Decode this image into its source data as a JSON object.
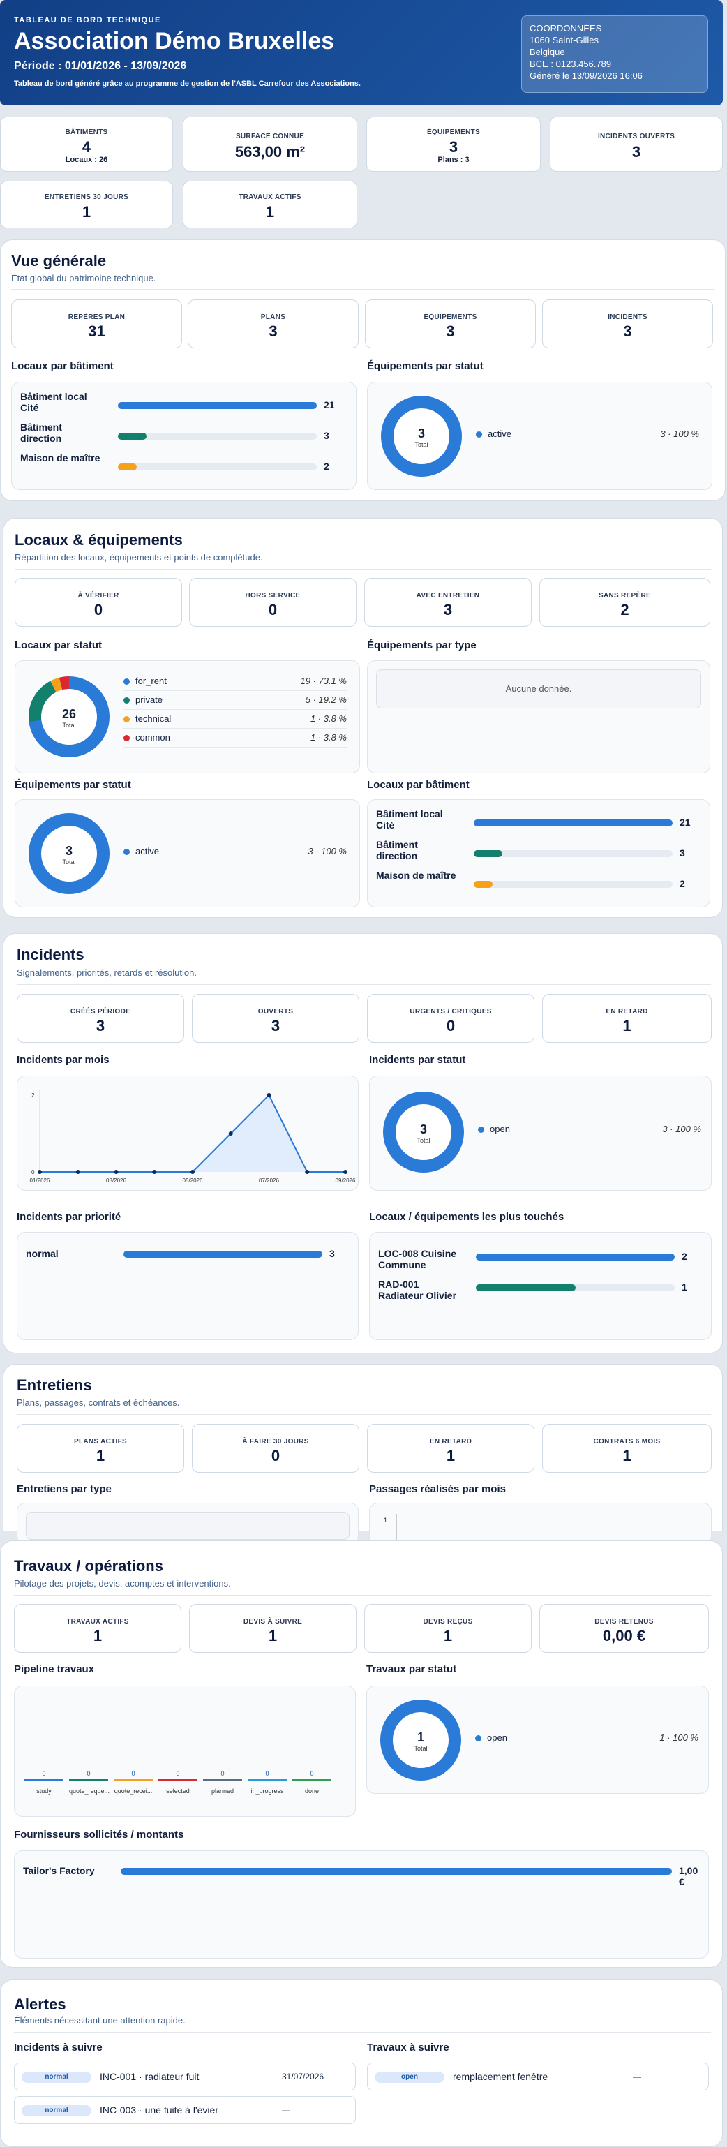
{
  "header": {
    "overline": "TABLEAU DE BORD TECHNIQUE",
    "title": "Association Démo Bruxelles",
    "period": "Période : 01/01/2026 - 13/09/2026",
    "subtitle": "Tableau de bord généré grâce au programme de gestion de l'ASBL Carrefour des Associations.",
    "contact": {
      "title": "COORDONNÉES",
      "line1": "1060 Saint-Gilles",
      "line2": "Belgique",
      "line3": "BCE : 0123.456.789",
      "line4": "Généré le 13/09/2026 16:06"
    }
  },
  "kpis": [
    {
      "label": "BÂTIMENTS",
      "value": "4",
      "sub": "Locaux : 26"
    },
    {
      "label": "SURFACE CONNUE",
      "value": "563,00 m²"
    },
    {
      "label": "ÉQUIPEMENTS",
      "value": "3",
      "sub": "Plans : 3"
    },
    {
      "label": "INCIDENTS OUVERTS",
      "value": "3"
    },
    {
      "label": "ENTRETIENS 30 JOURS",
      "value": "1"
    },
    {
      "label": "TRAVAUX ACTIFS",
      "value": "1"
    }
  ],
  "overview": {
    "title": "Vue générale",
    "subtitle": "État global du patrimoine technique.",
    "kpis": [
      {
        "label": "REPÈRES PLAN",
        "value": "31"
      },
      {
        "label": "PLANS",
        "value": "3"
      },
      {
        "label": "ÉQUIPEMENTS",
        "value": "3"
      },
      {
        "label": "INCIDENTS",
        "value": "3"
      }
    ],
    "locaux_title": "Locaux par bâtiment",
    "buildings": [
      {
        "name": "Bâtiment local Cité",
        "value": "21",
        "fraction": 1,
        "color": "#2a7ad8"
      },
      {
        "name": "Bâtiment direction",
        "value": "3",
        "fraction": 0.143,
        "color": "#12806d"
      },
      {
        "name": "Maison de maître",
        "value": "2",
        "fraction": 0.095,
        "color": "#f4a11b"
      }
    ],
    "equip_title": "Équipements par statut",
    "equip_donut": {
      "value": "3",
      "label": "Total"
    },
    "equip_legend": [
      {
        "name": "active",
        "value": "3 · 100 %",
        "color": "#2a7ad8"
      }
    ]
  },
  "locaux": {
    "title": "Locaux & équipements",
    "subtitle": "Répartition des locaux, équipements et points de complétude.",
    "kpis": [
      {
        "label": "À VÉRIFIER",
        "value": "0"
      },
      {
        "label": "HORS SERVICE",
        "value": "0"
      },
      {
        "label": "AVEC ENTRETIEN",
        "value": "3"
      },
      {
        "label": "SANS REPÈRE",
        "value": "2"
      }
    ],
    "status_title": "Locaux par statut",
    "status_donut": {
      "value": "26",
      "label": "Total"
    },
    "status_legend": [
      {
        "name": "for_rent",
        "value": "19 · 73.1 %",
        "color": "#2a7ad8"
      },
      {
        "name": "private",
        "value": "5 · 19.2 %",
        "color": "#12806d"
      },
      {
        "name": "technical",
        "value": "1 · 3.8 %",
        "color": "#f4a11b"
      },
      {
        "name": "common",
        "value": "1 · 3.8 %",
        "color": "#d9282f"
      }
    ],
    "type_title": "Équipements par type",
    "type_empty": "Aucune donnée.",
    "equip_title": "Équipements par statut",
    "equip_donut": {
      "value": "3",
      "label": "Total"
    },
    "equip_legend": [
      {
        "name": "active",
        "value": "3 · 100 %",
        "color": "#2a7ad8"
      }
    ],
    "build_title": "Locaux par bâtiment",
    "buildings": [
      {
        "name": "Bâtiment local Cité",
        "value": "21",
        "fraction": 1,
        "color": "#2a7ad8"
      },
      {
        "name": "Bâtiment direction",
        "value": "3",
        "fraction": 0.143,
        "color": "#12806d"
      },
      {
        "name": "Maison de maître",
        "value": "2",
        "fraction": 0.095,
        "color": "#f4a11b"
      }
    ]
  },
  "incidents": {
    "title": "Incidents",
    "subtitle": "Signalements, priorités, retards et résolution.",
    "kpis": [
      {
        "label": "CRÉÉS PÉRIODE",
        "value": "3"
      },
      {
        "label": "OUVERTS",
        "value": "3"
      },
      {
        "label": "URGENTS / CRITIQUES",
        "value": "0"
      },
      {
        "label": "EN RETARD",
        "value": "1"
      }
    ],
    "month_title": "Incidents par mois",
    "status_title": "Incidents par statut",
    "status_donut": {
      "value": "3",
      "label": "Total"
    },
    "status_legend": [
      {
        "name": "open",
        "value": "3 · 100 %",
        "color": "#2a7ad8"
      }
    ],
    "prio_title": "Incidents par priorité",
    "priorities": [
      {
        "name": "normal",
        "value": "3",
        "fraction": 1,
        "color": "#2a7ad8"
      }
    ],
    "touched_title": "Locaux / équipements les plus touchés",
    "touched": [
      {
        "name": "LOC-008 Cuisine Commune",
        "value": "2",
        "fraction": 1,
        "color": "#2a7ad8"
      },
      {
        "name": "RAD-001 Radiateur Olivier",
        "value": "1",
        "fraction": 0.5,
        "color": "#12806d"
      }
    ]
  },
  "chart_data": {
    "type": "area",
    "title": "",
    "x": [
      "01/2026",
      "02/2026",
      "03/2026",
      "04/2026",
      "05/2026",
      "06/2026",
      "07/2026",
      "08/2026",
      "09/2026"
    ],
    "tick_labels": [
      "01/2026",
      "03/2026",
      "05/2026",
      "07/2026",
      "09/2026"
    ],
    "values": [
      0,
      0,
      0,
      0,
      0,
      1,
      2,
      0,
      0
    ],
    "ylim": [
      0,
      2
    ],
    "yticks": [
      "0",
      "2"
    ],
    "color": "#2a7ad8"
  },
  "entretiens": {
    "title": "Entretiens",
    "subtitle": "Plans, passages, contrats et échéances.",
    "kpis": [
      {
        "label": "PLANS ACTIFS",
        "value": "1"
      },
      {
        "label": "À FAIRE 30 JOURS",
        "value": "0"
      },
      {
        "label": "EN RETARD",
        "value": "1"
      },
      {
        "label": "CONTRATS 6 MOIS",
        "value": "1"
      }
    ],
    "type_title": "Entretiens par type",
    "passages_title": "Passages réalisés par mois",
    "passages_ytick": "1"
  },
  "travaux": {
    "title": "Travaux / opérations",
    "subtitle": "Pilotage des projets, devis, acomptes et interventions.",
    "kpis": [
      {
        "label": "TRAVAUX ACTIFS",
        "value": "1"
      },
      {
        "label": "DEVIS À SUIVRE",
        "value": "1"
      },
      {
        "label": "DEVIS REÇUS",
        "value": "1"
      },
      {
        "label": "DEVIS RETENUS",
        "value": "0,00 €"
      }
    ],
    "pipeline_title": "Pipeline travaux",
    "pipeline": [
      {
        "label": "study",
        "value": "0",
        "color": "#2a7ad8"
      },
      {
        "label": "quote_reque...",
        "value": "0",
        "color": "#12806d"
      },
      {
        "label": "quote_recei...",
        "value": "0",
        "color": "#f4a11b"
      },
      {
        "label": "selected",
        "value": "0",
        "color": "#d9282f"
      },
      {
        "label": "planned",
        "value": "0",
        "color": "#5b6b86"
      },
      {
        "label": "in_progress",
        "value": "0",
        "color": "#2a9ad8"
      },
      {
        "label": "done",
        "value": "0",
        "color": "#2e9e4f"
      }
    ],
    "status_title": "Travaux par statut",
    "status_donut": {
      "value": "1",
      "label": "Total"
    },
    "status_legend": [
      {
        "name": "open",
        "value": "1 · 100 %",
        "color": "#2a7ad8"
      }
    ],
    "suppliers_title": "Fournisseurs sollicités / montants",
    "suppliers": [
      {
        "name": "Tailor's Factory",
        "value": "1,00 €",
        "fraction": 1,
        "color": "#2a7ad8"
      }
    ]
  },
  "alertes": {
    "title": "Alertes",
    "subtitle": "Éléments nécessitant une attention rapide.",
    "inc_title": "Incidents à suivre",
    "incidents": [
      {
        "badge": "normal",
        "label": "INC-001 · radiateur fuit",
        "date": "31/07/2026"
      },
      {
        "badge": "normal",
        "label": "INC-003 · une fuite à l'évier",
        "date": "—"
      }
    ],
    "trav_title": "Travaux à suivre",
    "travaux": [
      {
        "badge": "open",
        "label": "remplacement fenêtre",
        "date": "—"
      }
    ]
  }
}
